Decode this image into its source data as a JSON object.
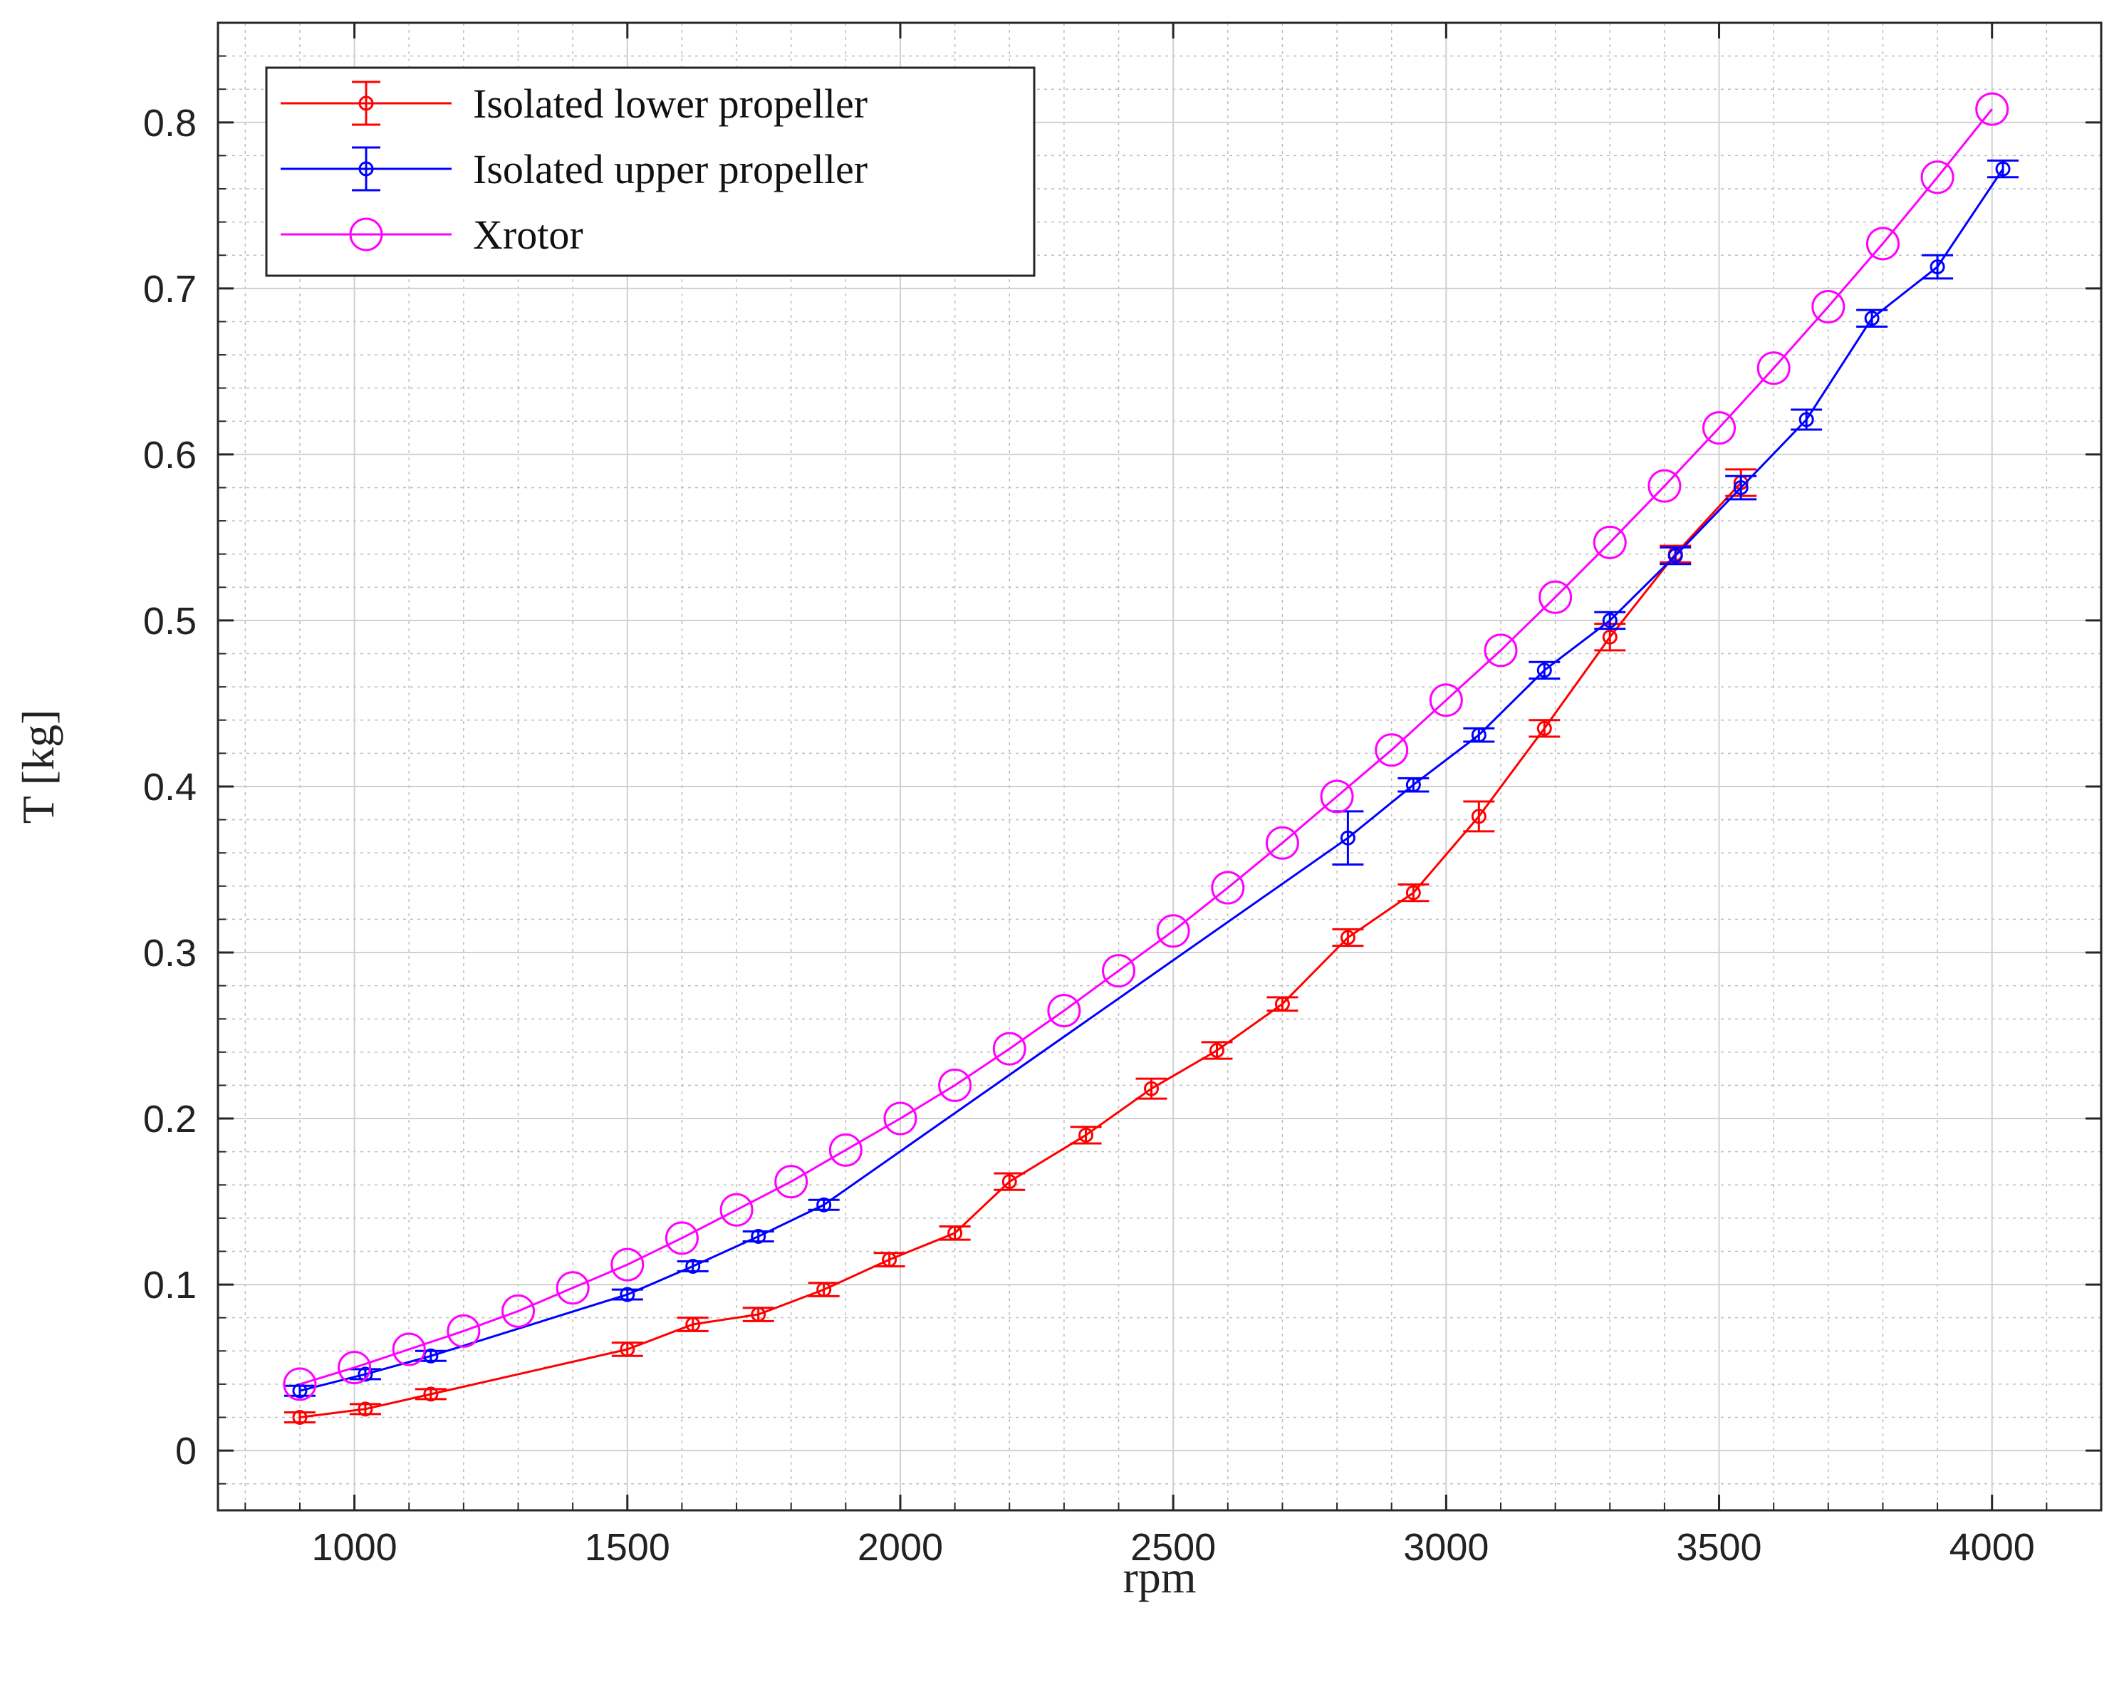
{
  "chart_data": {
    "type": "line",
    "title": "",
    "xlabel": "rpm",
    "ylabel": "T [kg]",
    "xlim": [
      750,
      4200
    ],
    "ylim": [
      -0.036,
      0.86
    ],
    "xticks": [
      "1000",
      "1500",
      "2000",
      "2500",
      "3000",
      "3500",
      "4000"
    ],
    "yticks": [
      "0",
      "0.1",
      "0.2",
      "0.3",
      "0.4",
      "0.5",
      "0.6",
      "0.7",
      "0.8"
    ],
    "grid": true,
    "minor_grid": true,
    "legend_position": "top-left",
    "series": [
      {
        "name": "Isolated lower propeller",
        "color": "#ff0000",
        "marker": "small-circle",
        "error_bars": true,
        "x": [
          900,
          1020,
          1140,
          1500,
          1620,
          1740,
          1860,
          1980,
          2100,
          2200,
          2340,
          2460,
          2580,
          2700,
          2820,
          2940,
          3060,
          3180,
          3300,
          3420,
          3540
        ],
        "y": [
          0.02,
          0.025,
          0.034,
          0.061,
          0.076,
          0.082,
          0.097,
          0.115,
          0.131,
          0.162,
          0.19,
          0.218,
          0.241,
          0.269,
          0.309,
          0.336,
          0.382,
          0.435,
          0.49,
          0.54,
          0.583
        ],
        "err": [
          0.003,
          0.003,
          0.003,
          0.004,
          0.004,
          0.004,
          0.004,
          0.004,
          0.004,
          0.005,
          0.005,
          0.006,
          0.005,
          0.004,
          0.005,
          0.005,
          0.009,
          0.005,
          0.008,
          0.005,
          0.008
        ]
      },
      {
        "name": "Isolated upper propeller",
        "color": "#0000ff",
        "marker": "small-circle",
        "error_bars": true,
        "x": [
          900,
          1020,
          1140,
          1500,
          1620,
          1740,
          1860,
          2820,
          2940,
          3060,
          3180,
          3300,
          3420,
          3540,
          3660,
          3780,
          3900,
          4020
        ],
        "y": [
          0.036,
          0.046,
          0.057,
          0.094,
          0.111,
          0.129,
          0.148,
          0.369,
          0.401,
          0.431,
          0.47,
          0.5,
          0.539,
          0.58,
          0.621,
          0.682,
          0.713,
          0.772
        ],
        "err": [
          0.003,
          0.003,
          0.003,
          0.003,
          0.003,
          0.003,
          0.003,
          0.016,
          0.004,
          0.004,
          0.005,
          0.005,
          0.005,
          0.007,
          0.006,
          0.005,
          0.007,
          0.005
        ]
      },
      {
        "name": "Xrotor",
        "color": "#ff00ff",
        "marker": "large-circle",
        "error_bars": false,
        "x": [
          900,
          1000,
          1100,
          1200,
          1300,
          1400,
          1500,
          1600,
          1700,
          1800,
          1900,
          2000,
          2100,
          2200,
          2300,
          2400,
          2500,
          2600,
          2700,
          2800,
          2900,
          3000,
          3100,
          3200,
          3300,
          3400,
          3500,
          3600,
          3700,
          3800,
          3900,
          4000
        ],
        "y": [
          0.04,
          0.05,
          0.061,
          0.072,
          0.084,
          0.098,
          0.112,
          0.128,
          0.145,
          0.162,
          0.181,
          0.2,
          0.22,
          0.242,
          0.265,
          0.289,
          0.313,
          0.339,
          0.366,
          0.394,
          0.422,
          0.452,
          0.482,
          0.514,
          0.547,
          0.581,
          0.616,
          0.652,
          0.689,
          0.727,
          0.767,
          0.808
        ]
      }
    ]
  }
}
